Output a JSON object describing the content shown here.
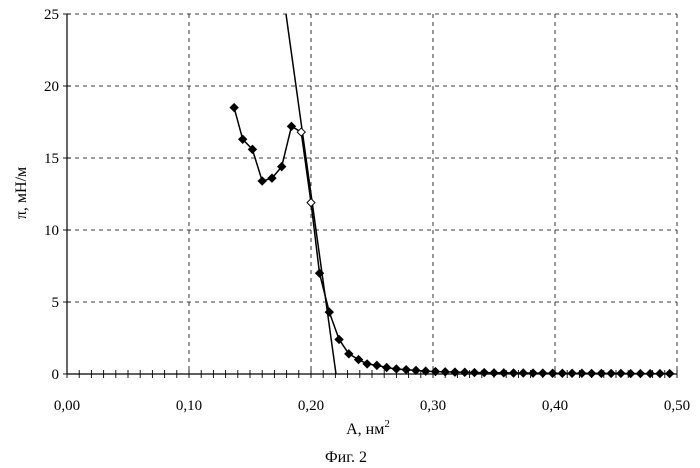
{
  "chart_data": {
    "type": "line",
    "xlabel": "A, нм",
    "xlabel_superscript": "2",
    "ylabel": "π, мН/м",
    "caption": "Фиг. 2",
    "xlim": [
      0.0,
      0.5
    ],
    "ylim": [
      0,
      25
    ],
    "x_ticks": [
      {
        "value": 0.0,
        "label": "0,00"
      },
      {
        "value": 0.1,
        "label": "0,10"
      },
      {
        "value": 0.2,
        "label": "0,20"
      },
      {
        "value": 0.3,
        "label": "0,30"
      },
      {
        "value": 0.4,
        "label": "0,40"
      },
      {
        "value": 0.5,
        "label": "0,50"
      }
    ],
    "y_ticks": [
      {
        "value": 0,
        "label": "0"
      },
      {
        "value": 5,
        "label": "5"
      },
      {
        "value": 10,
        "label": "10"
      },
      {
        "value": 15,
        "label": "15"
      },
      {
        "value": 20,
        "label": "20"
      },
      {
        "value": 25,
        "label": "25"
      }
    ],
    "x_minor_step": 0.01,
    "grid": true,
    "series": [
      {
        "marker": "filled-diamond",
        "x": [
          0.137,
          0.144,
          0.152,
          0.16,
          0.168,
          0.176,
          0.184,
          0.192,
          0.2,
          0.207,
          0.215,
          0.223,
          0.231,
          0.239,
          0.246,
          0.254,
          0.262,
          0.27,
          0.278,
          0.286,
          0.294,
          0.302,
          0.31,
          0.318,
          0.326,
          0.334,
          0.342,
          0.35,
          0.358,
          0.366,
          0.374,
          0.382,
          0.39,
          0.398,
          0.406,
          0.414,
          0.422,
          0.43,
          0.438,
          0.446,
          0.454,
          0.462,
          0.47,
          0.478,
          0.486,
          0.494
        ],
        "y": [
          18.5,
          16.3,
          15.6,
          13.4,
          13.6,
          14.4,
          17.2,
          16.8,
          11.9,
          7.0,
          4.3,
          2.4,
          1.4,
          1.0,
          0.7,
          0.6,
          0.45,
          0.35,
          0.3,
          0.25,
          0.2,
          0.17,
          0.15,
          0.13,
          0.12,
          0.1,
          0.1,
          0.08,
          0.08,
          0.07,
          0.07,
          0.06,
          0.06,
          0.05,
          0.05,
          0.05,
          0.05,
          0.04,
          0.04,
          0.04,
          0.04,
          0.03,
          0.03,
          0.03,
          0.03,
          0.03
        ],
        "open_marker_indices": [
          7,
          8
        ]
      }
    ],
    "tangent_line": {
      "x": [
        0.1795,
        0.2205
      ],
      "y": [
        25,
        0
      ]
    }
  }
}
